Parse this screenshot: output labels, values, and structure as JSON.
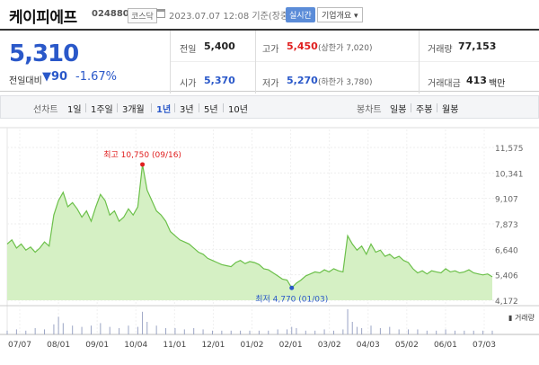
{
  "header": {
    "name": "케이피에프",
    "code": "024880",
    "market": "코스닥",
    "time": "2023.07.07 12:08 기준(장중)",
    "realtime": "실시간",
    "company": "기업개요"
  },
  "summary": {
    "price": "5,310",
    "change_label": "전일대비",
    "change_value": "▼90",
    "change_pct": "-1.67%",
    "prev_label": "전일",
    "prev_value": "5,400",
    "high_label": "고가",
    "high_value": "5,450",
    "upper_limit": "(상한가 7,020)",
    "volume_label": "거래량",
    "volume_value": "77,153",
    "open_label": "시가",
    "open_value": "5,370",
    "low_label": "저가",
    "low_value": "5,270",
    "lower_limit": "(하한가 3,780)",
    "amount_label": "거래대금",
    "amount_value": "413",
    "amount_unit": "백만"
  },
  "periods": {
    "line_label": "선차트",
    "line_options": [
      "1일",
      "1주일",
      "3개월",
      "1년",
      "3년",
      "5년",
      "10년"
    ],
    "active": "1년",
    "candle_label": "봉차트",
    "candle_options": [
      "일봉",
      "주봉",
      "월봉"
    ]
  },
  "chart_data": {
    "type": "area",
    "y_ticks": [
      "11,575",
      "10,341",
      "9,107",
      "7,873",
      "6,640",
      "5,406",
      "4,172"
    ],
    "ylim": [
      4172,
      11575
    ],
    "x_ticks": [
      "07/07",
      "08/01",
      "09/01",
      "10/04",
      "11/01",
      "12/01",
      "01/02",
      "02/01",
      "03/02",
      "04/03",
      "05/02",
      "06/01",
      "07/03"
    ],
    "high_label": "최고 10,750 (09/16)",
    "low_label": "최저 4,770 (01/03)",
    "volume_label": "거래량",
    "grid": true,
    "price_series": [
      [
        0,
        6900
      ],
      [
        1,
        7100
      ],
      [
        2,
        6700
      ],
      [
        3,
        6900
      ],
      [
        4,
        6600
      ],
      [
        5,
        6750
      ],
      [
        6,
        6500
      ],
      [
        7,
        6700
      ],
      [
        8,
        7000
      ],
      [
        9,
        6800
      ],
      [
        10,
        8300
      ],
      [
        11,
        9000
      ],
      [
        12,
        9400
      ],
      [
        13,
        8700
      ],
      [
        14,
        8900
      ],
      [
        15,
        8600
      ],
      [
        16,
        8200
      ],
      [
        17,
        8500
      ],
      [
        18,
        8000
      ],
      [
        19,
        8700
      ],
      [
        20,
        9300
      ],
      [
        21,
        9000
      ],
      [
        22,
        8300
      ],
      [
        23,
        8500
      ],
      [
        24,
        8000
      ],
      [
        25,
        8200
      ],
      [
        26,
        8600
      ],
      [
        27,
        8300
      ],
      [
        28,
        8700
      ],
      [
        29,
        10750
      ],
      [
        30,
        9500
      ],
      [
        31,
        9000
      ],
      [
        32,
        8500
      ],
      [
        33,
        8300
      ],
      [
        34,
        8000
      ],
      [
        35,
        7500
      ],
      [
        36,
        7300
      ],
      [
        37,
        7100
      ],
      [
        38,
        7000
      ],
      [
        39,
        6900
      ],
      [
        40,
        6700
      ],
      [
        41,
        6500
      ],
      [
        42,
        6400
      ],
      [
        43,
        6200
      ],
      [
        44,
        6100
      ],
      [
        45,
        6000
      ],
      [
        46,
        5900
      ],
      [
        47,
        5850
      ],
      [
        48,
        5800
      ],
      [
        49,
        6000
      ],
      [
        50,
        6100
      ],
      [
        51,
        5950
      ],
      [
        52,
        6050
      ],
      [
        53,
        6000
      ],
      [
        54,
        5900
      ],
      [
        55,
        5700
      ],
      [
        56,
        5650
      ],
      [
        57,
        5500
      ],
      [
        58,
        5350
      ],
      [
        59,
        5200
      ],
      [
        60,
        5150
      ],
      [
        61,
        4770
      ],
      [
        62,
        5000
      ],
      [
        63,
        5150
      ],
      [
        64,
        5350
      ],
      [
        65,
        5450
      ],
      [
        66,
        5550
      ],
      [
        67,
        5500
      ],
      [
        68,
        5650
      ],
      [
        69,
        5550
      ],
      [
        70,
        5700
      ],
      [
        71,
        5600
      ],
      [
        72,
        5550
      ],
      [
        73,
        7300
      ],
      [
        74,
        6900
      ],
      [
        75,
        6600
      ],
      [
        76,
        6800
      ],
      [
        77,
        6400
      ],
      [
        78,
        6900
      ],
      [
        79,
        6500
      ],
      [
        80,
        6600
      ],
      [
        81,
        6300
      ],
      [
        82,
        6400
      ],
      [
        83,
        6200
      ],
      [
        84,
        6300
      ],
      [
        85,
        6100
      ],
      [
        86,
        6000
      ],
      [
        87,
        5700
      ],
      [
        88,
        5500
      ],
      [
        89,
        5600
      ],
      [
        90,
        5450
      ],
      [
        91,
        5600
      ],
      [
        92,
        5550
      ],
      [
        93,
        5500
      ],
      [
        94,
        5700
      ],
      [
        95,
        5550
      ],
      [
        96,
        5600
      ],
      [
        97,
        5500
      ],
      [
        98,
        5550
      ],
      [
        99,
        5650
      ],
      [
        100,
        5500
      ],
      [
        101,
        5450
      ],
      [
        102,
        5400
      ],
      [
        103,
        5450
      ],
      [
        104,
        5310
      ]
    ],
    "volume_series": [
      [
        0,
        3
      ],
      [
        2,
        4
      ],
      [
        4,
        3
      ],
      [
        6,
        5
      ],
      [
        8,
        4
      ],
      [
        10,
        8
      ],
      [
        11,
        14
      ],
      [
        12,
        9
      ],
      [
        14,
        7
      ],
      [
        16,
        6
      ],
      [
        18,
        7
      ],
      [
        20,
        9
      ],
      [
        22,
        6
      ],
      [
        24,
        5
      ],
      [
        26,
        7
      ],
      [
        28,
        6
      ],
      [
        29,
        18
      ],
      [
        30,
        10
      ],
      [
        32,
        7
      ],
      [
        34,
        5
      ],
      [
        36,
        5
      ],
      [
        38,
        4
      ],
      [
        40,
        5
      ],
      [
        42,
        4
      ],
      [
        44,
        3
      ],
      [
        46,
        3
      ],
      [
        48,
        3
      ],
      [
        50,
        3
      ],
      [
        52,
        3
      ],
      [
        54,
        3
      ],
      [
        56,
        3
      ],
      [
        58,
        4
      ],
      [
        60,
        4
      ],
      [
        61,
        6
      ],
      [
        62,
        5
      ],
      [
        64,
        3
      ],
      [
        66,
        3
      ],
      [
        68,
        4
      ],
      [
        70,
        3
      ],
      [
        72,
        4
      ],
      [
        73,
        20
      ],
      [
        74,
        10
      ],
      [
        75,
        6
      ],
      [
        76,
        5
      ],
      [
        78,
        7
      ],
      [
        80,
        5
      ],
      [
        82,
        6
      ],
      [
        84,
        4
      ],
      [
        86,
        4
      ],
      [
        88,
        4
      ],
      [
        90,
        3
      ],
      [
        92,
        3
      ],
      [
        94,
        4
      ],
      [
        96,
        3
      ],
      [
        98,
        3
      ],
      [
        100,
        3
      ],
      [
        102,
        3
      ],
      [
        104,
        3
      ]
    ]
  },
  "colors": {
    "accent_blue": "#2a58c9",
    "up_red": "#e02020",
    "area_fill": "#d5f0c4",
    "area_line": "#6cc04a"
  }
}
